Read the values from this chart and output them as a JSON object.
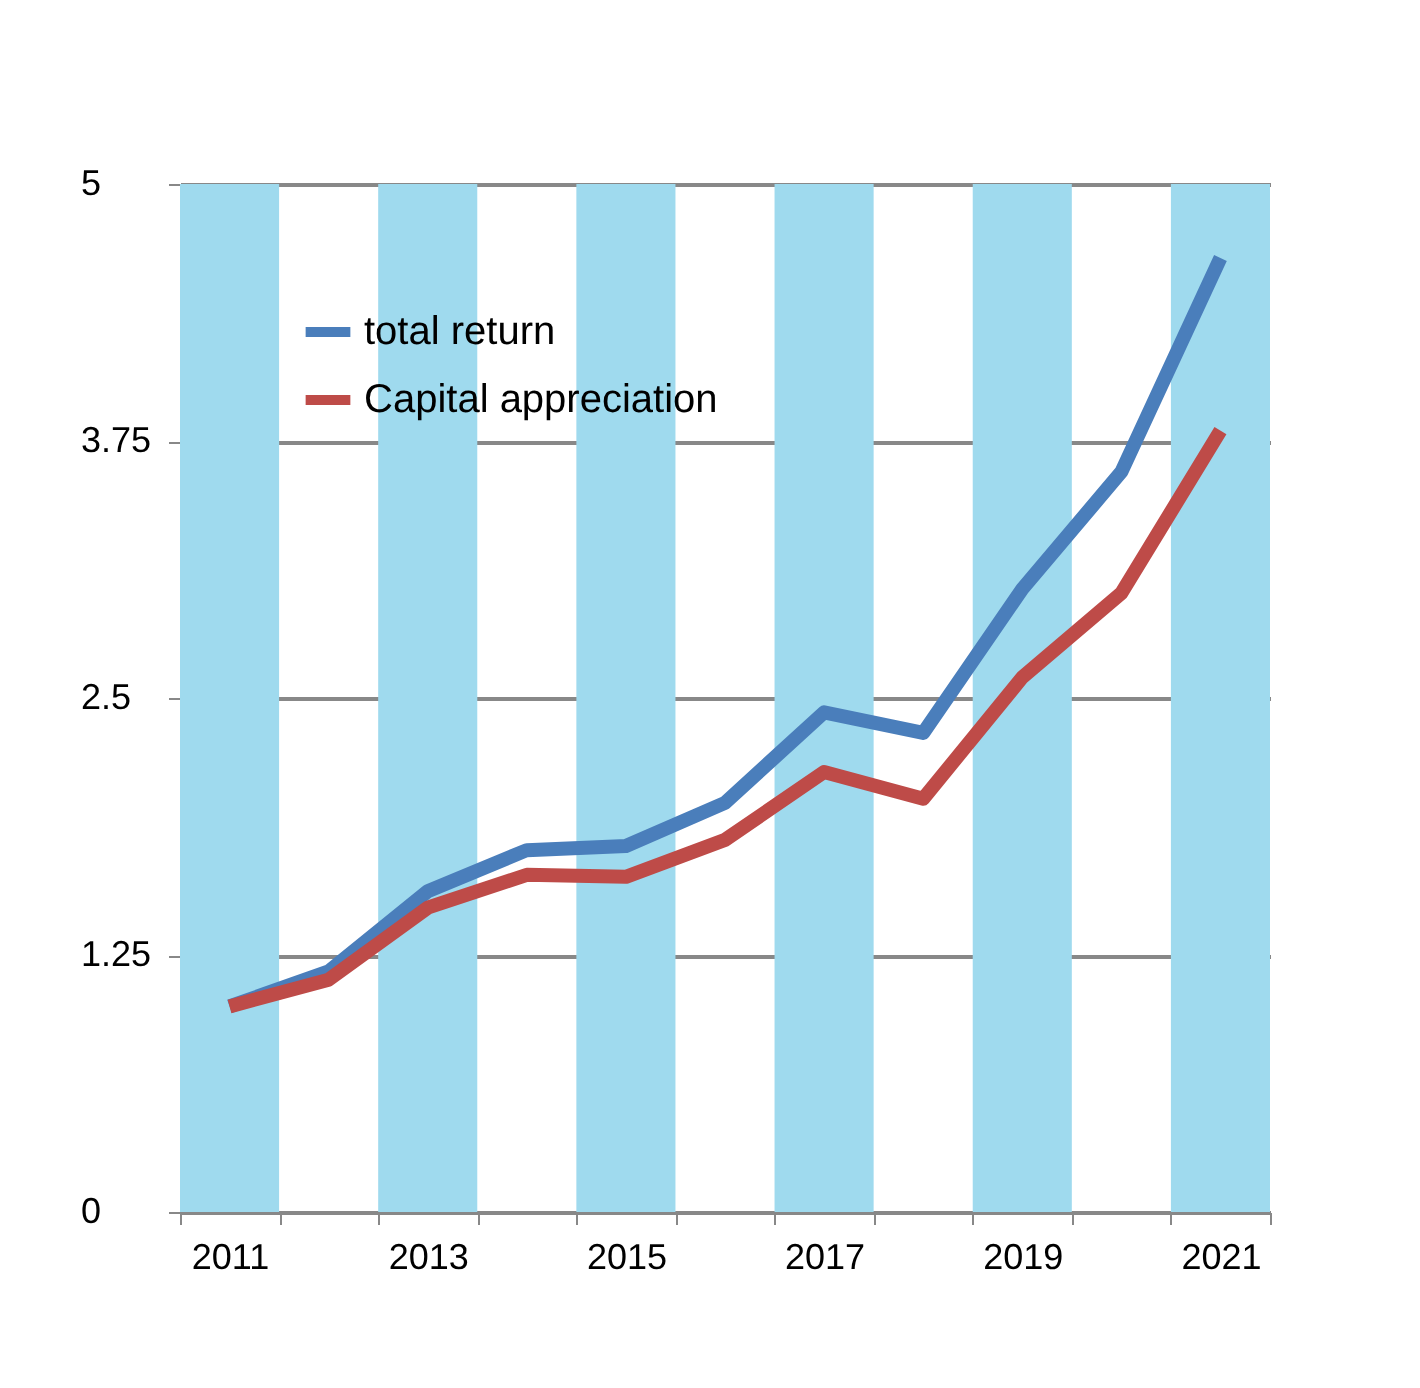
{
  "chart_data": {
    "type": "line",
    "categories": [
      "2011",
      null,
      "2013",
      null,
      "2015",
      null,
      "2017",
      null,
      "2019",
      null,
      "2021"
    ],
    "series": [
      {
        "name": "total return",
        "color": "#4a7ebb",
        "values": [
          1.0,
          1.17,
          1.56,
          1.76,
          1.78,
          1.99,
          2.43,
          2.33,
          3.03,
          3.6,
          4.64
        ]
      },
      {
        "name": "Capital appreciation",
        "color": "#be4b48",
        "values": [
          1.0,
          1.13,
          1.48,
          1.64,
          1.63,
          1.81,
          2.14,
          2.01,
          2.6,
          3.01,
          3.8
        ]
      }
    ],
    "bands": [
      {
        "axis": "x",
        "from": "2011",
        "to": "2011",
        "color": "#9fdaee"
      },
      {
        "axis": "x",
        "from": "2013",
        "to": "2013",
        "color": "#9fdaee"
      },
      {
        "axis": "x",
        "from": "2015",
        "to": "2015",
        "color": "#9fdaee"
      },
      {
        "axis": "x",
        "from": "2017",
        "to": "2017",
        "color": "#9fdaee"
      },
      {
        "axis": "x",
        "from": "2019",
        "to": "2019",
        "color": "#9fdaee"
      },
      {
        "axis": "x",
        "from": "2021",
        "to": "2021",
        "color": "#9fdaee"
      }
    ],
    "ylim": [
      0,
      5
    ],
    "yticks": [
      0,
      1.25,
      2.5,
      3.75,
      5
    ],
    "grid": "y",
    "legend": "top left",
    "line_style": "solid",
    "marker": "none"
  }
}
